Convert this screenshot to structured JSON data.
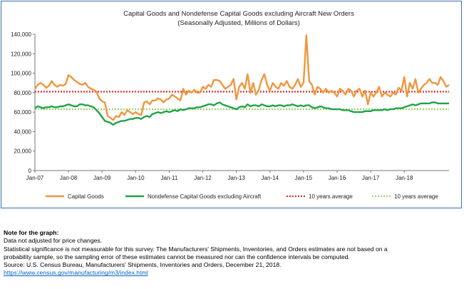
{
  "chart_data": {
    "type": "line",
    "title": "Capital Goods and Nondefense Capital Goods excluding Aircraft New Orders",
    "subtitle": "(Seasonally Adjusted, Millions of Dollars)",
    "xlabel": "",
    "ylabel": "",
    "ylim": [
      0,
      140000
    ],
    "yticks": [
      0,
      20000,
      40000,
      60000,
      80000,
      100000,
      120000,
      140000
    ],
    "ytick_labels": [
      "0",
      "20,000",
      "40,000",
      "60,000",
      "80,000",
      "100,000",
      "120,000",
      "140,000"
    ],
    "xticks": [
      "Jan-07",
      "Jan-08",
      "Jan-09",
      "Jan-10",
      "Jan-11",
      "Jan-12",
      "Jan-13",
      "Jan-14",
      "Jan-15",
      "Jan-16",
      "Jan-17",
      "Jan-18"
    ],
    "grid": false,
    "legend_position": "bottom",
    "start": "Jan-07",
    "series": [
      {
        "name": "Capital Goods",
        "color": "#f0963c",
        "style": "solid",
        "values": [
          84000,
          88000,
          90000,
          88000,
          85000,
          87000,
          92000,
          88000,
          86000,
          88000,
          87000,
          89000,
          98000,
          96000,
          93000,
          91000,
          89000,
          88000,
          90000,
          86000,
          84000,
          83000,
          81000,
          74000,
          71000,
          70000,
          56000,
          54000,
          52000,
          56000,
          55000,
          60000,
          57000,
          62000,
          60000,
          58000,
          60000,
          58000,
          57000,
          70000,
          71000,
          68000,
          72000,
          72000,
          74000,
          73000,
          70000,
          73000,
          74000,
          78000,
          76000,
          74000,
          72000,
          84000,
          78000,
          82000,
          80000,
          83000,
          80000,
          80000,
          86000,
          84000,
          88000,
          86000,
          93000,
          93000,
          92000,
          88000,
          84000,
          86000,
          88000,
          94000,
          73000,
          86000,
          90000,
          84000,
          99000,
          80000,
          90000,
          78000,
          83000,
          93000,
          99000,
          88000,
          82000,
          90000,
          86000,
          84000,
          90000,
          87000,
          92000,
          86000,
          84000,
          88000,
          94000,
          86000,
          90000,
          139000,
          92000,
          88000,
          78000,
          86000,
          84000,
          80000,
          84000,
          80000,
          82000,
          80000,
          76000,
          84000,
          82000,
          78000,
          84000,
          82000,
          76000,
          82000,
          84000,
          76000,
          82000,
          68000,
          80000,
          76000,
          80000,
          86000,
          76000,
          80000,
          78000,
          76000,
          80000,
          78000,
          85000,
          82000,
          96000,
          76000,
          90000,
          84000,
          94000,
          80000,
          84000,
          88000,
          90000,
          94000,
          90000,
          90000,
          88000,
          96000,
          92000,
          86000,
          88000
        ]
      },
      {
        "name": "Nondefense Capital Goods excluding Aircraft",
        "color": "#22a24a",
        "style": "solid",
        "values": [
          64000,
          66000,
          65000,
          64000,
          65000,
          65000,
          66000,
          65000,
          65000,
          66000,
          66000,
          67000,
          68000,
          67000,
          66000,
          66000,
          68000,
          68000,
          67000,
          67000,
          66000,
          65000,
          62000,
          59000,
          55000,
          51000,
          50000,
          49000,
          47000,
          49000,
          50000,
          51000,
          51000,
          52000,
          53000,
          53000,
          54000,
          54000,
          53000,
          55000,
          56000,
          55000,
          58000,
          59000,
          60000,
          59000,
          60000,
          61000,
          60000,
          61000,
          62000,
          61000,
          63000,
          62000,
          63000,
          64000,
          64000,
          64000,
          65000,
          65000,
          66000,
          67000,
          68000,
          68000,
          67000,
          69000,
          70000,
          68000,
          67000,
          66000,
          65000,
          64000,
          63000,
          65000,
          66000,
          65000,
          68000,
          66000,
          67000,
          67000,
          66000,
          68000,
          67000,
          66000,
          66000,
          67000,
          66000,
          67000,
          67000,
          66000,
          67000,
          67000,
          68000,
          67000,
          66000,
          67000,
          66000,
          67000,
          67000,
          65000,
          64000,
          65000,
          66000,
          65000,
          64000,
          64000,
          63000,
          63000,
          63000,
          63000,
          62000,
          62000,
          62000,
          61000,
          60000,
          60000,
          60000,
          60000,
          61000,
          61000,
          61000,
          62000,
          62000,
          62000,
          62000,
          63000,
          62000,
          63000,
          63000,
          64000,
          64000,
          64000,
          65000,
          66000,
          67000,
          68000,
          67000,
          68000,
          69000,
          69000,
          69000,
          69000,
          70000,
          70000,
          69000,
          69000,
          69000,
          69000,
          69000
        ]
      },
      {
        "name": "10 years average",
        "color": "#e0161c",
        "style": "dotted",
        "value": 81000
      },
      {
        "name": "10 years average",
        "color": "#8fcf4f",
        "style": "dotted",
        "value": 63000
      }
    ]
  },
  "notes": {
    "title": "Note for the graph:",
    "line1": "Data not adjusted for price changes.",
    "line2": "Statistical significance is not measurable for this survey.  The Manufacturers' Shipments, Inventories, and Orders estimates are not based on a",
    "line3": "probability sample, so the sampling error of these estimates cannot be measured nor can the confidence intervals be computed.",
    "source": "Source: U.S. Census Bureau, Manufacturers' Shipments, Inventories and Orders, December 21, 2018.",
    "link": "https://www.census.gov/manufacturing/m3/index.html"
  }
}
